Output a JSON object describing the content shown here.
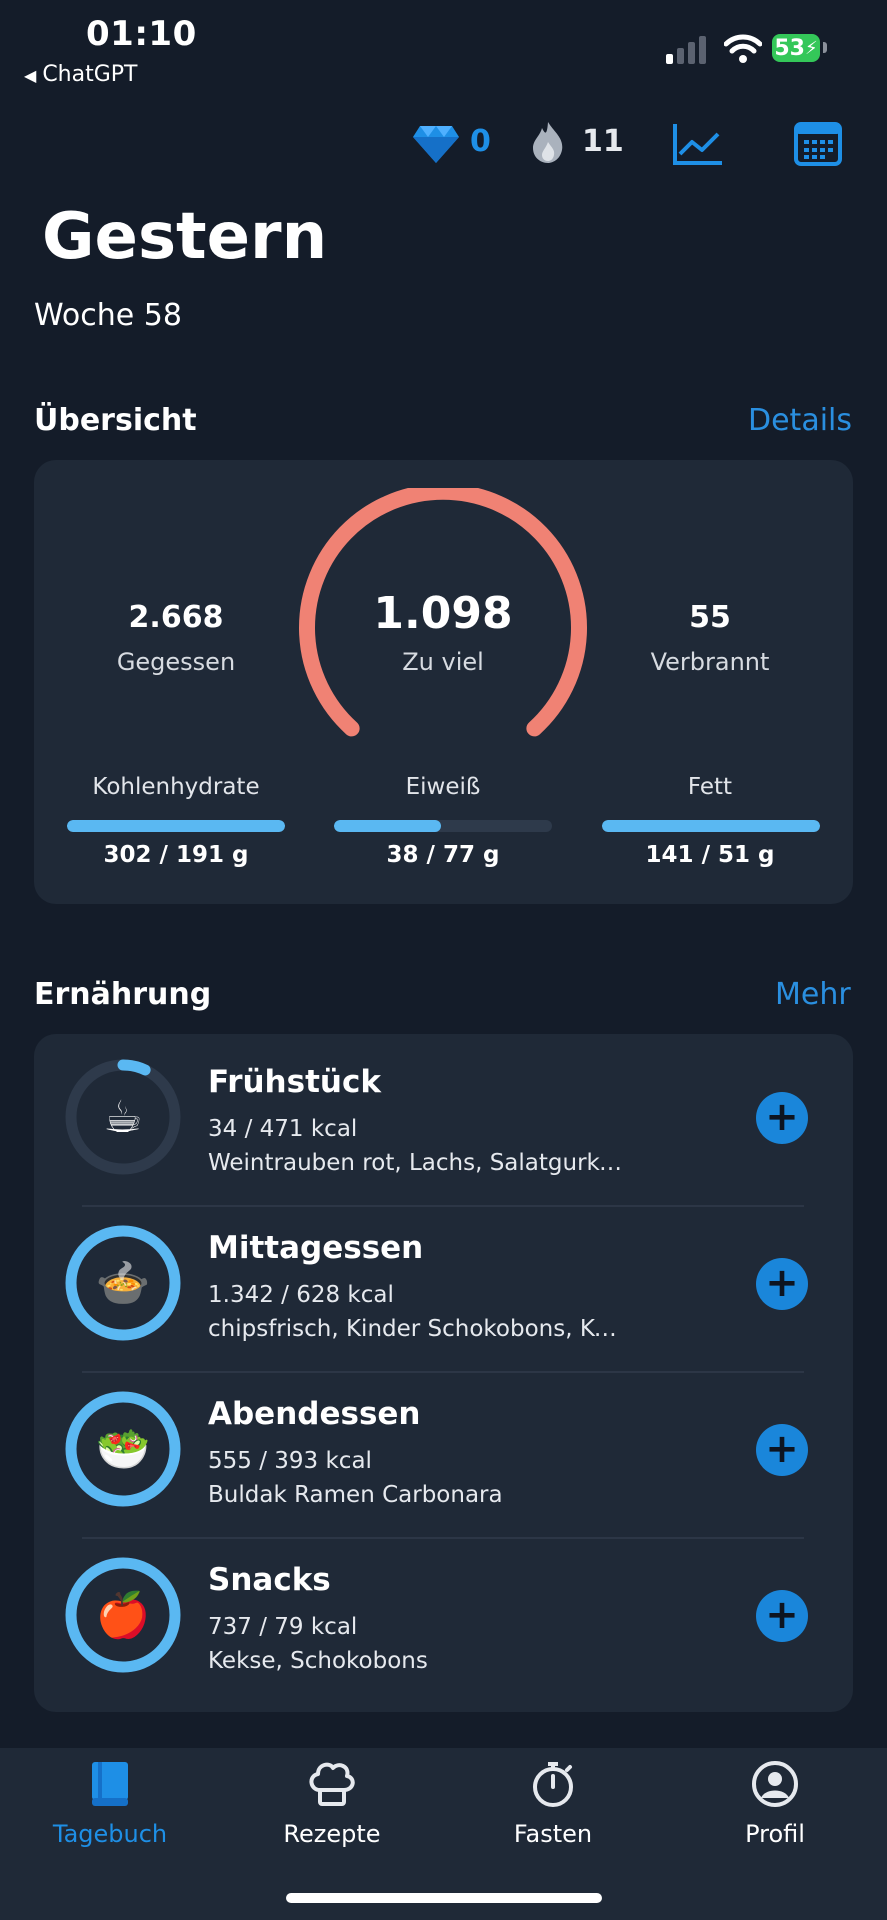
{
  "status_bar": {
    "time": "01:10",
    "back_app": "ChatGPT",
    "battery": "53"
  },
  "top_stats": {
    "gems": "0",
    "streak": "11"
  },
  "header": {
    "title": "Gestern",
    "week": "Woche 58"
  },
  "overview": {
    "title": "Übersicht",
    "link": "Details",
    "eaten_value": "2.668",
    "eaten_label": "Gegessen",
    "main_value": "1.098",
    "main_label": "Zu viel",
    "burned_value": "55",
    "burned_label": "Verbrannt",
    "gauge_color": "#f08274",
    "macros": [
      {
        "label": "Kohlenhydrate",
        "value": "302 / 191 g",
        "progress": 1.0
      },
      {
        "label": "Eiweiß",
        "value": "38 / 77 g",
        "progress": 0.49
      },
      {
        "label": "Fett",
        "value": "141 / 51 g",
        "progress": 1.0
      }
    ]
  },
  "nutrition": {
    "title": "Ernährung",
    "link": "Mehr",
    "meals": [
      {
        "name": "Frühstück",
        "kcal": "34 / 471 kcal",
        "items": "Weintrauben rot, Lachs, Salatgurke, Cherr...",
        "icon": "coffee-icon",
        "emoji": "☕",
        "progress": 0.07
      },
      {
        "name": "Mittagessen",
        "kcal": "1.342 / 628 kcal",
        "items": "chipsfrisch, Kinder Schokobons, Kekse",
        "icon": "soup-icon",
        "emoji": "🍲",
        "progress": 1.0
      },
      {
        "name": "Abendessen",
        "kcal": "555 / 393 kcal",
        "items": "Buldak Ramen Carbonara",
        "icon": "salad-icon",
        "emoji": "🥗",
        "progress": 1.0
      },
      {
        "name": "Snacks",
        "kcal": "737 / 79 kcal",
        "items": "Kekse, Schokobons",
        "icon": "apple-icon",
        "emoji": "🍎",
        "progress": 1.0
      }
    ]
  },
  "tabs": [
    {
      "label": "Tagebuch",
      "icon": "book-icon",
      "active": true
    },
    {
      "label": "Rezepte",
      "icon": "chef-hat-icon",
      "active": false
    },
    {
      "label": "Fasten",
      "icon": "stopwatch-icon",
      "active": false
    },
    {
      "label": "Profil",
      "icon": "profile-icon",
      "active": false
    }
  ],
  "colors": {
    "accent": "#1e8fe6",
    "bar": "#5ab8f2",
    "background": "#141c29",
    "card": "#1f2937"
  }
}
